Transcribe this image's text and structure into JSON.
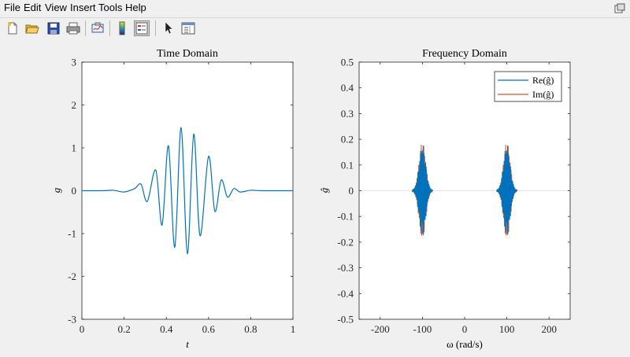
{
  "menu": {
    "items": [
      "File",
      "Edit",
      "View",
      "Insert",
      "Tools",
      "Help"
    ]
  },
  "toolbar": {
    "buttons": [
      "new-figure-icon",
      "open-icon",
      "save-icon",
      "print-icon",
      "link-plot-icon",
      "colorbar-icon",
      "legend-icon",
      "pointer-icon",
      "property-inspector-icon"
    ]
  },
  "colors": {
    "series1": "#0072bd",
    "series2": "#d95319"
  },
  "chart_data": [
    {
      "type": "line",
      "title": "Time Domain",
      "xlabel": "t",
      "ylabel": "g",
      "xlim": [
        0,
        1
      ],
      "ylim": [
        -3,
        3
      ],
      "xticks": [
        0,
        0.2,
        0.4,
        0.6,
        0.8,
        1
      ],
      "xtick_labels": [
        "0",
        "0.2",
        "0.4",
        "0.6",
        "0.8",
        "1"
      ],
      "yticks": [
        -3,
        -2,
        -1,
        0,
        1,
        2,
        3
      ],
      "ytick_labels": [
        "-3",
        "-2",
        "-1",
        "0",
        "1",
        "2",
        "3"
      ],
      "grid": false,
      "series": [
        {
          "x": [
            0,
            0.1,
            0.15,
            0.2,
            0.25,
            0.28,
            0.31,
            0.35,
            0.38,
            0.41,
            0.44,
            0.47,
            0.5,
            0.53,
            0.56,
            0.6,
            0.63,
            0.66,
            0.69,
            0.72,
            0.75,
            0.8,
            0.85,
            1
          ],
          "y": [
            0,
            0,
            0.01,
            -0.03,
            0.05,
            0.15,
            -0.25,
            0.48,
            -0.8,
            1.05,
            -1.32,
            1.47,
            -1.47,
            1.32,
            -1.05,
            0.8,
            -0.48,
            0.25,
            -0.15,
            0.05,
            -0.03,
            0.01,
            0,
            0
          ]
        }
      ]
    },
    {
      "type": "line",
      "title": "Frequency Domain",
      "xlabel": "ω (rad/s)",
      "ylabel": "ĝ",
      "xlim": [
        -250,
        250
      ],
      "ylim": [
        -0.5,
        0.5
      ],
      "xticks": [
        -200,
        -100,
        0,
        100,
        200
      ],
      "xtick_labels": [
        "-200",
        "-100",
        "0",
        "100",
        "200"
      ],
      "yticks": [
        -0.5,
        -0.4,
        -0.3,
        -0.2,
        -0.1,
        0,
        0.1,
        0.2,
        0.3,
        0.4,
        0.5
      ],
      "ytick_labels": [
        "-0.5",
        "-0.4",
        "-0.3",
        "-0.2",
        "-0.1",
        "0",
        "0.1",
        "0.2",
        "0.3",
        "0.4",
        "0.5"
      ],
      "grid": false,
      "legend": "top-right",
      "series": [
        {
          "name": "Re(ĝ)",
          "packets": [
            {
              "center": -100,
              "width": 35,
              "peak": 0.18
            },
            {
              "center": 100,
              "width": 35,
              "peak": 0.18
            }
          ]
        },
        {
          "name": "Im(ĝ)",
          "packets": [
            {
              "center": -100,
              "width": 35,
              "peak": 0.19
            },
            {
              "center": 100,
              "width": 35,
              "peak": 0.19
            }
          ]
        }
      ]
    }
  ]
}
